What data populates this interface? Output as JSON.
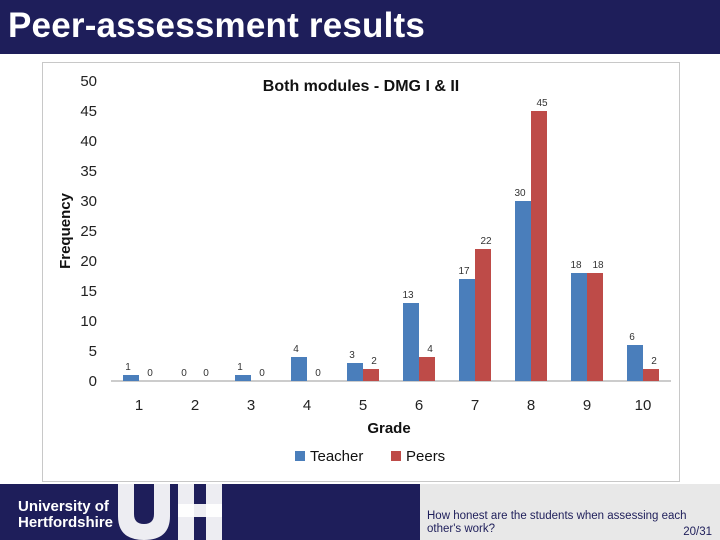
{
  "slide": {
    "title": "Peer-assessment results",
    "caption": "How honest are the students when assessing each other's work?",
    "page_number": "20/31"
  },
  "logo": {
    "line1": "University of",
    "line2": "Hertfordshire"
  },
  "colors": {
    "header_bg": "#1e1e5a",
    "teacher": "#4a7ebb",
    "peers": "#be4b48"
  },
  "chart_data": {
    "type": "bar",
    "title": "Both modules - DMG I & II",
    "xlabel": "Grade",
    "ylabel": "Frequency",
    "categories": [
      "1",
      "2",
      "3",
      "4",
      "5",
      "6",
      "7",
      "8",
      "9",
      "10"
    ],
    "ylim": [
      0,
      50
    ],
    "yticks": [
      0,
      5,
      10,
      15,
      20,
      25,
      30,
      35,
      40,
      45,
      50
    ],
    "grid": false,
    "legend_position": "bottom",
    "series": [
      {
        "name": "Teacher",
        "color": "#4a7ebb",
        "values": [
          1,
          0,
          1,
          4,
          3,
          13,
          17,
          30,
          18,
          6
        ]
      },
      {
        "name": "Peers",
        "color": "#be4b48",
        "values": [
          0,
          0,
          0,
          0,
          2,
          4,
          22,
          45,
          18,
          2
        ]
      }
    ]
  }
}
